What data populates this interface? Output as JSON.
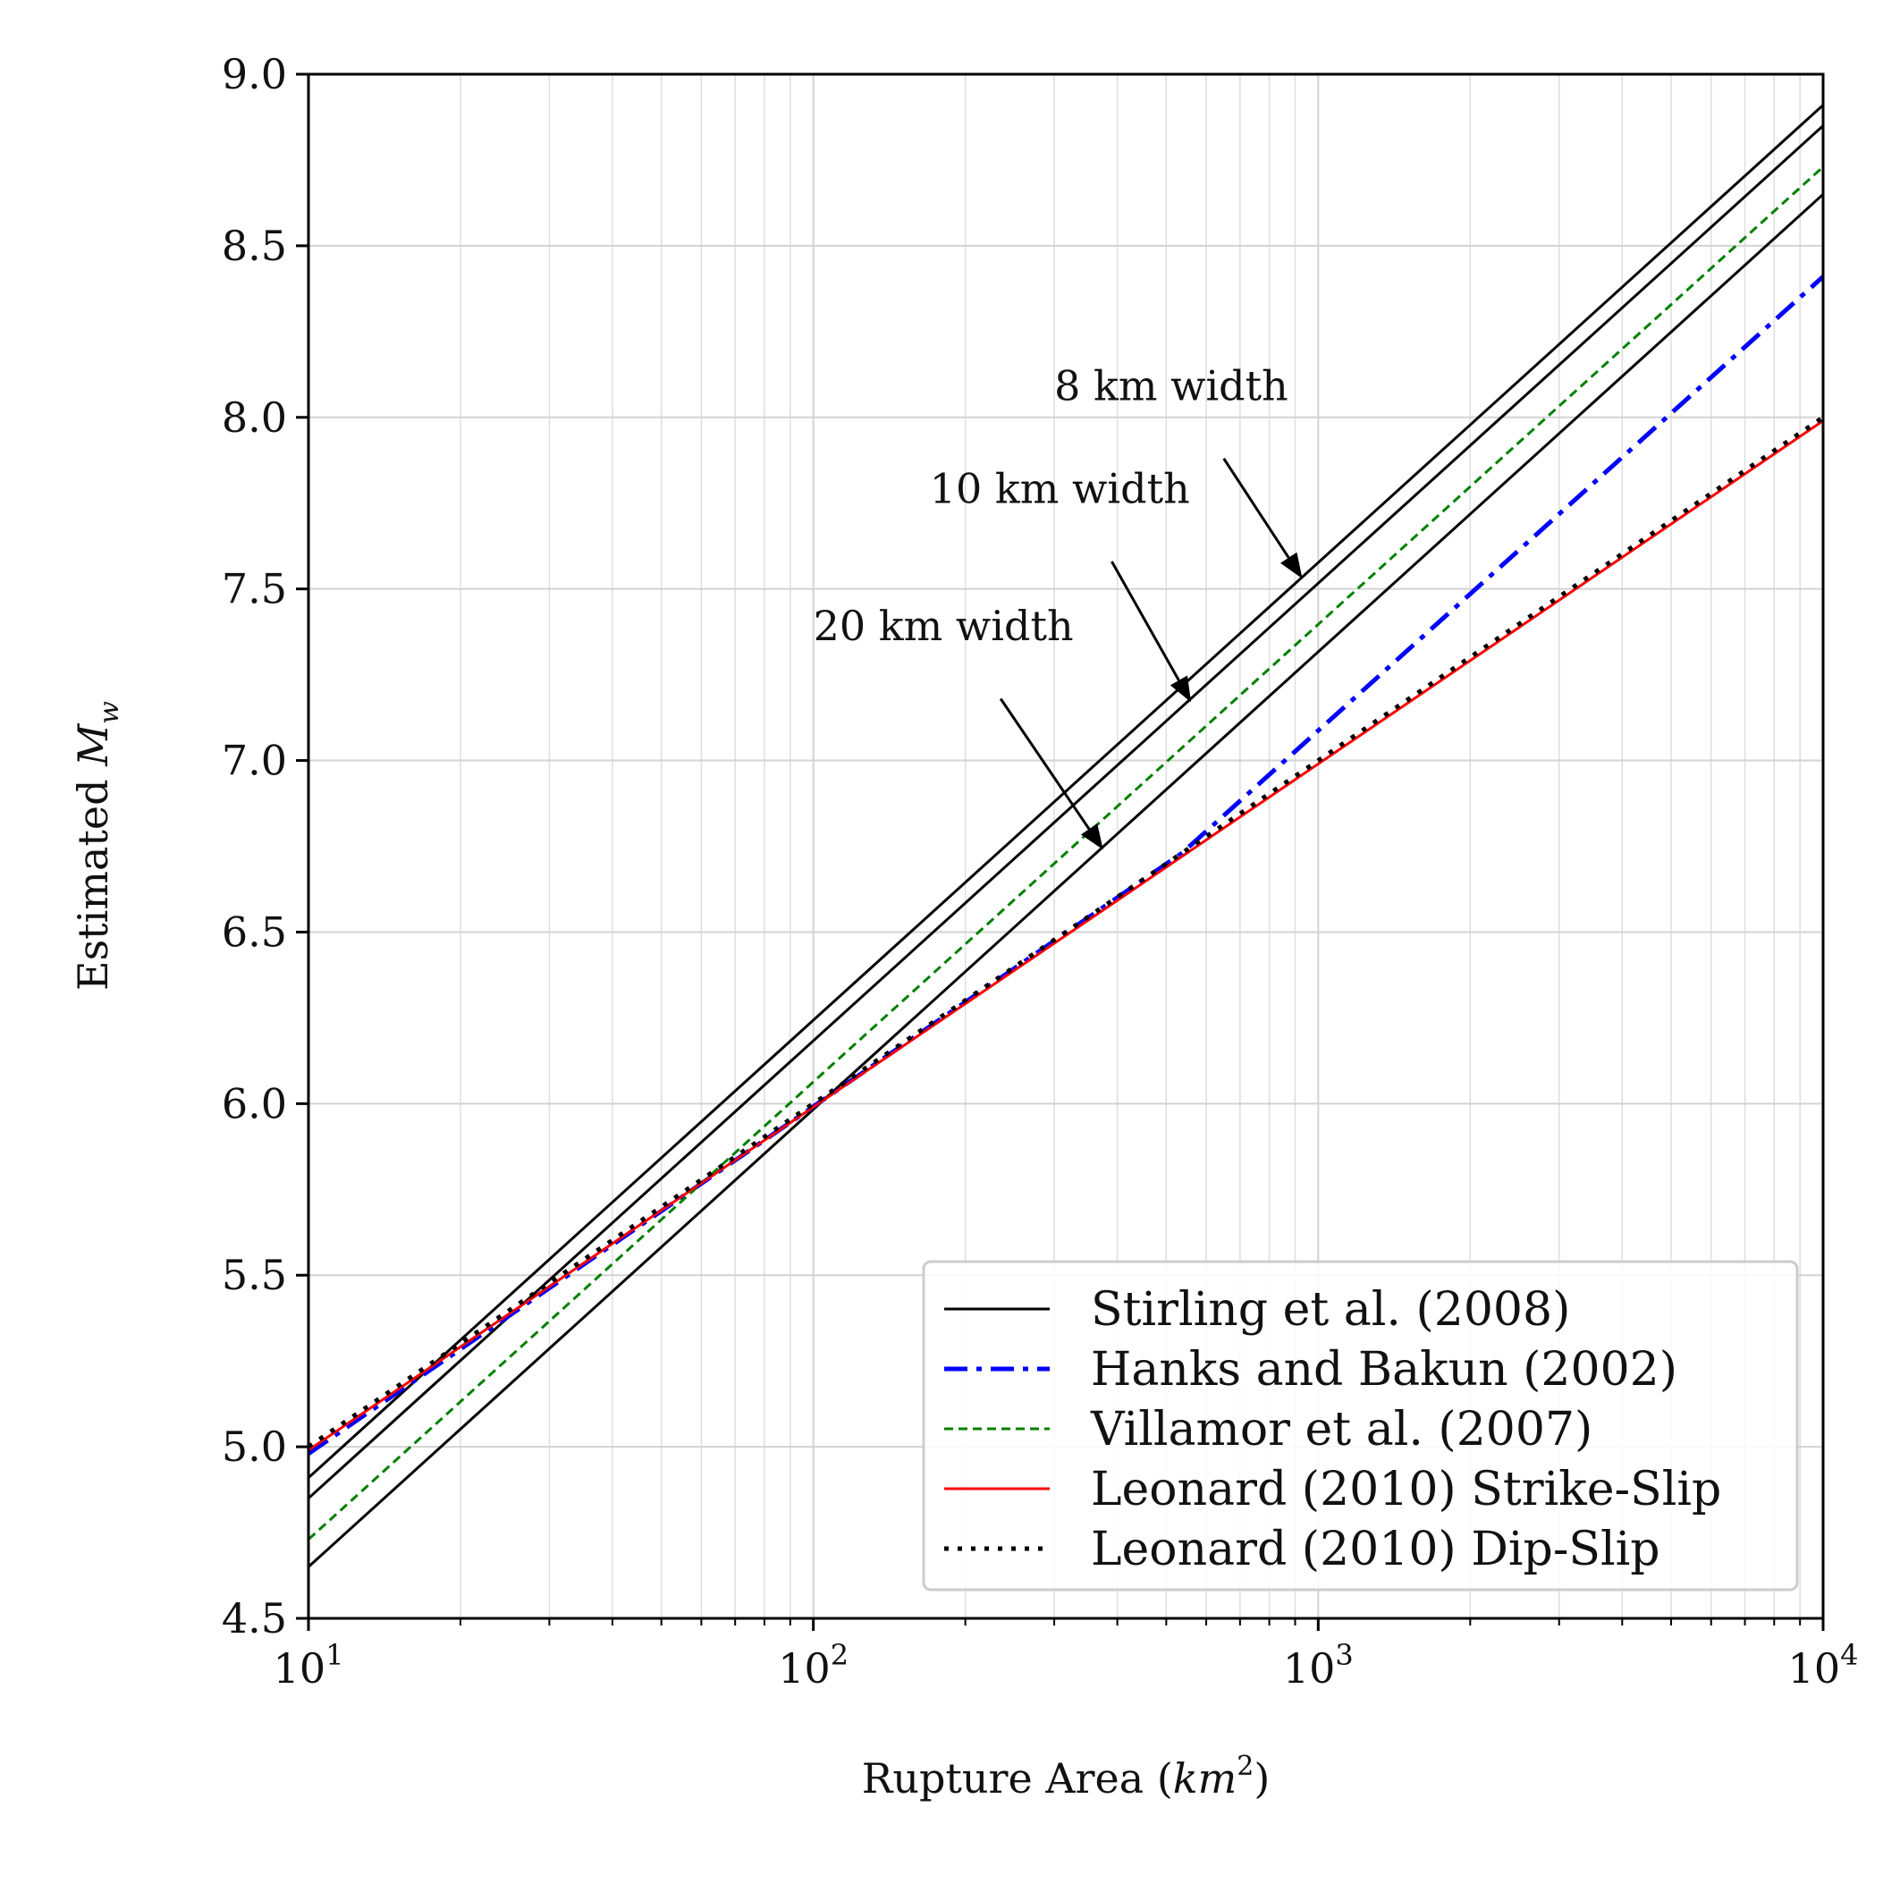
{
  "chart_data": {
    "type": "line",
    "xlabel": "Rupture Area (km²)",
    "xlabel_parts": {
      "prefix": "Rupture Area (",
      "unit": "km",
      "exp": "2",
      "suffix": ")"
    },
    "ylabel": "Estimated Mw",
    "ylabel_parts": {
      "prefix": "Estimated ",
      "sym": "M",
      "sub": "w"
    },
    "x_scale": "log",
    "xlim": [
      10,
      10000
    ],
    "ylim": [
      4.5,
      9.0
    ],
    "grid": true,
    "x_ticks": [
      {
        "value": 10,
        "base": "10",
        "exp": "1"
      },
      {
        "value": 100,
        "base": "10",
        "exp": "2"
      },
      {
        "value": 1000,
        "base": "10",
        "exp": "3"
      },
      {
        "value": 10000,
        "base": "10",
        "exp": "4"
      }
    ],
    "y_ticks": [
      "4.5",
      "5.0",
      "5.5",
      "6.0",
      "6.5",
      "7.0",
      "7.5",
      "8.0",
      "8.5",
      "9.0"
    ],
    "legend_position": "lower-right",
    "series": [
      {
        "name": "Stirling et al. (2008)",
        "color": "#000000",
        "style": "solid",
        "show_in_legend": true,
        "x": [
          10,
          10000
        ],
        "y": [
          4.91,
          8.91
        ]
      },
      {
        "name": "",
        "color": "#000000",
        "style": "solid",
        "show_in_legend": false,
        "x": [
          10,
          10000
        ],
        "y": [
          4.85,
          8.85
        ]
      },
      {
        "name": "",
        "color": "#000000",
        "style": "solid",
        "show_in_legend": false,
        "x": [
          10,
          10000
        ],
        "y": [
          4.65,
          8.65
        ]
      },
      {
        "name": "Hanks and Bakun (2002)",
        "color": "#0000ff",
        "style": "dashdot",
        "show_in_legend": true,
        "x": [
          10,
          537,
          10000
        ],
        "y": [
          4.98,
          6.73,
          8.41
        ]
      },
      {
        "name": "Villamor et al. (2007)",
        "color": "#008000",
        "style": "dashed",
        "show_in_legend": true,
        "x": [
          10,
          10000
        ],
        "y": [
          4.73,
          8.73
        ]
      },
      {
        "name": "Leonard (2010) Strike-Slip",
        "color": "#ff0000",
        "style": "solid",
        "show_in_legend": true,
        "x": [
          10,
          10000
        ],
        "y": [
          4.99,
          7.99
        ]
      },
      {
        "name": "Leonard (2010) Dip-Slip",
        "color": "#000000",
        "style": "dotted",
        "show_in_legend": true,
        "x": [
          10,
          10000
        ],
        "y": [
          5.0,
          8.0
        ]
      }
    ],
    "annotations": [
      {
        "text": "8 km width",
        "text_x": 300,
        "text_y": 8.05,
        "tail_x": 650,
        "tail_y": 7.88,
        "head_x": 930,
        "head_y": 7.53
      },
      {
        "text": "10 km width",
        "text_x": 170,
        "text_y": 7.75,
        "tail_x": 390,
        "tail_y": 7.58,
        "head_x": 560,
        "head_y": 7.17
      },
      {
        "text": "20 km width",
        "text_x": 100,
        "text_y": 7.35,
        "tail_x": 235,
        "tail_y": 7.18,
        "head_x": 375,
        "head_y": 6.74
      }
    ]
  }
}
